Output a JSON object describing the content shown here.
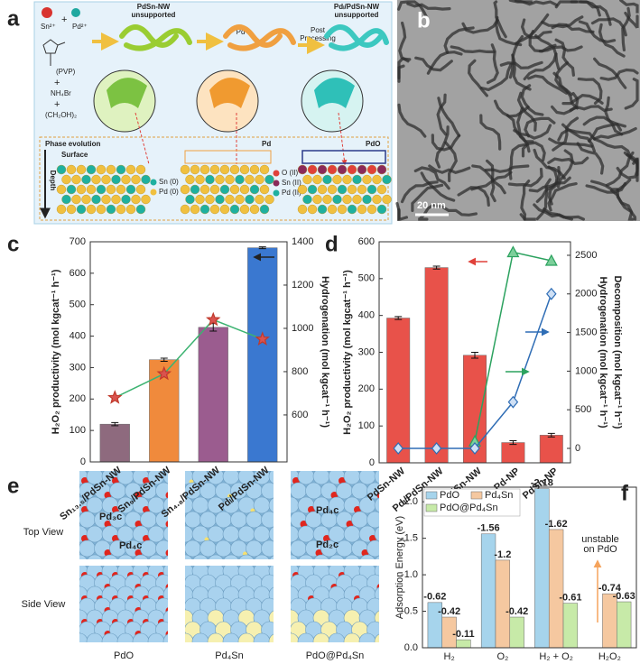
{
  "panel_labels": [
    "a",
    "b",
    "c",
    "d",
    "e",
    "f"
  ],
  "panel_a": {
    "precursors": [
      "Sn²⁺",
      "Pd²⁺",
      "(PVP)",
      "NH₄Br",
      "(CH₂OH)₂"
    ],
    "stage1": [
      "PdSn-NW",
      "unsupported"
    ],
    "step1": "Pd²⁺",
    "step2": [
      "Post",
      "Processing"
    ],
    "stage3": [
      "Pdₗ/PdSn-NW",
      "unsupported"
    ],
    "phase": "Phase evolution",
    "surface": "Surface",
    "depth": "Depth",
    "legend1": [
      "Sn (0)",
      "Pd (0)"
    ],
    "pd_label": "Pd",
    "legend2": [
      "O (II)",
      "Sn (II)",
      "Pd (II)"
    ],
    "pdo_label": "PdO"
  },
  "panel_b": {
    "scale": "20 nm"
  },
  "panel_e": {
    "rows": [
      "Top View",
      "Side View"
    ],
    "columns": [
      "PdO",
      "Pd₄Sn",
      "PdO@Pd₄Sn"
    ],
    "site_labels": [
      "Pd₃c",
      "Pd₄c",
      "Pd₄c",
      "Pd₂c"
    ]
  },
  "chart_data": [
    {
      "type": "bar",
      "ylabel": "H₂O₂ productivity (mol kgcat⁻¹ h⁻¹)",
      "y2labels": [
        {
          "text": "Hydrogenation (mol kgcat⁻¹ h⁻¹)",
          "color": "#2ca25f"
        }
      ],
      "y2tick_color": "#2ca25f",
      "categories": [
        "Sn₁₃.₅/PdSn-NW",
        "Sn₉/PdSn-NW",
        "Sn₄.₈/PdSn-NW",
        "Pdₗ/PdSn-NW"
      ],
      "series": [
        {
          "type": "bar",
          "colors": [
            "#8e6a7e",
            "#f08a3c",
            "#9b5c8f",
            "#3a78d0"
          ],
          "values": [
            120,
            325,
            428,
            681
          ],
          "errors": [
            5,
            5,
            12,
            3
          ]
        },
        {
          "type": "line",
          "axis": "y2",
          "color": "#3cb371",
          "marker": "star",
          "marker_color": "#d9534f",
          "values": [
            680,
            790,
            1040,
            950
          ]
        }
      ],
      "ylim": [
        0,
        700
      ],
      "yticks": [
        0,
        100,
        200,
        300,
        400,
        500,
        600,
        700
      ],
      "y2lim": [
        383,
        1400
      ],
      "y2ticks": [
        600,
        800,
        1000,
        1200,
        1400
      ]
    },
    {
      "type": "bar",
      "ylabel": "H₂O₂ productivity (mol kgcat⁻¹ h⁻¹)",
      "ylabel_color": "#e0413a",
      "ytick_color": "#e0413a",
      "y2labels": [
        {
          "text": "Hydrogenation (mol kgcat⁻¹ h⁻¹)",
          "color": "#2ca25f"
        },
        {
          "text": "Decomposition (mol kgcat⁻¹ h⁻¹)",
          "color": "#2f6db5"
        }
      ],
      "y2tick_color": "#2a8a8a",
      "categories": [
        "PdSn-NW",
        "Pdₗ/PdSn-NW",
        "Pd₂ₗ/PdSn-NW",
        "Pd-NP",
        "PdSn-NP"
      ],
      "series": [
        {
          "type": "bar",
          "color": "#e8524a",
          "values": [
            393,
            530,
            292,
            55,
            75
          ],
          "errors": [
            4,
            4,
            8,
            5,
            5
          ]
        },
        {
          "type": "line",
          "axis": "y2",
          "color": "#2ca25f",
          "marker": "triangle",
          "marker_color": "#7ccf9a",
          "values": [
            null,
            null,
            90,
            2540,
            2430
          ]
        },
        {
          "type": "line",
          "axis": "y2",
          "color": "#2f6db5",
          "marker": "diamond",
          "marker_color": "#cfe0f5",
          "values": [
            0,
            0,
            0,
            600,
            2000
          ]
        }
      ],
      "ylim": [
        0,
        600
      ],
      "yticks": [
        0,
        100,
        200,
        300,
        400,
        500,
        600
      ],
      "y2lim": [
        -187,
        2675
      ],
      "y2ticks": [
        0,
        500,
        1000,
        1500,
        2000,
        2500
      ]
    },
    {
      "type": "bar",
      "ylabel": "Adsorption Energy (eV)",
      "data_labels": true,
      "annotation": [
        "unstable",
        "on PdO"
      ],
      "categories": [
        "H₂",
        "O₂",
        "H₂ + O₂",
        "H₂O₂"
      ],
      "series": [
        {
          "type": "bar",
          "name": "PdO",
          "color": "#a6d4ec",
          "values": [
            -0.62,
            -1.56,
            -2.18,
            null
          ]
        },
        {
          "type": "bar",
          "name": "Pd₄Sn",
          "color": "#f5c8a0",
          "values": [
            -0.42,
            -1.2,
            -1.62,
            -0.74
          ]
        },
        {
          "type": "bar",
          "name": "PdO@Pd₄Sn",
          "color": "#c7eaa8",
          "values": [
            -0.11,
            -0.42,
            -0.61,
            -0.63
          ]
        }
      ],
      "ylim": [
        0,
        -2.2
      ],
      "yticks": [
        {
          "value": 0,
          "label": "0.0"
        },
        -0.5,
        {
          "value": -1,
          "label": "-1.0"
        },
        -1.5,
        {
          "value": -2,
          "label": "-2.0"
        }
      ]
    }
  ]
}
